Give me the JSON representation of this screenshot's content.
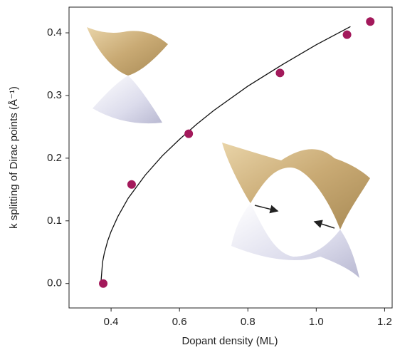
{
  "chart_data": {
    "type": "scatter",
    "x_label": "Dopant density (ML)",
    "y_label": "k splitting of Dirac points (Å⁻¹)",
    "x": [
      0.377,
      0.46,
      0.627,
      0.894,
      1.09,
      1.158
    ],
    "values": [
      0.0,
      0.158,
      0.239,
      0.336,
      0.397,
      0.418
    ],
    "color": "#a3195b",
    "fit": {
      "x": [
        0.37,
        0.375,
        0.38,
        0.39,
        0.4,
        0.42,
        0.45,
        0.5,
        0.55,
        0.6,
        0.65,
        0.7,
        0.8,
        0.9,
        1.0,
        1.1
      ],
      "values": [
        0,
        0.034,
        0.048,
        0.068,
        0.083,
        0.107,
        0.136,
        0.173,
        0.204,
        0.23,
        0.254,
        0.276,
        0.315,
        0.349,
        0.381,
        0.41
      ],
      "color": "#111111"
    },
    "xlim": [
      0.277,
      1.222
    ],
    "ylim": [
      -0.039,
      0.441
    ],
    "xticks": [
      0.4,
      0.6,
      0.8,
      {
        "value": 1,
        "label": "1.0"
      },
      1.2
    ],
    "yticks": [
      {
        "value": 0,
        "label": "0.0"
      },
      0.1,
      0.2,
      0.3,
      0.4
    ]
  }
}
